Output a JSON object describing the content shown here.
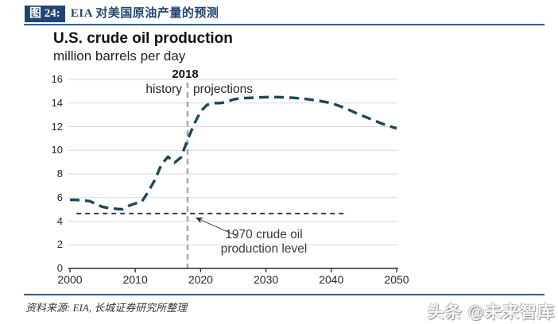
{
  "header": {
    "tag": "图 24:",
    "title": "EIA 对美国原油产量的预测"
  },
  "footer": {
    "source": "资料来源: EIA, 长城证券研究所整理",
    "watermark": "头条 @未来智库"
  },
  "colors": {
    "accent_blue": "#1f4577",
    "rule_blue": "#2e5e9e",
    "series": "#17485e",
    "grid": "#d9d9d9",
    "axis": "#2b2b2b",
    "ref_vertical_gray": "#a9a9a9",
    "ref_horizontal_dark": "#3a3a3a",
    "arrow": "#555555"
  },
  "chart_data": {
    "type": "line",
    "title": "U.S. crude oil production",
    "subtitle": "million barrels per day",
    "xlabel": "",
    "ylabel": "million barrels per day",
    "xlim": [
      2000,
      2050
    ],
    "ylim": [
      0,
      16
    ],
    "x_ticks": [
      2000,
      2010,
      2020,
      2030,
      2040,
      2050
    ],
    "y_ticks": [
      0,
      2,
      4,
      6,
      8,
      10,
      12,
      14,
      16
    ],
    "grid": "horizontal-only",
    "legend_position": "none",
    "series": [
      {
        "name": "U.S. crude oil production",
        "line_style": "dashed",
        "points": [
          [
            2000,
            5.8
          ],
          [
            2001,
            5.8
          ],
          [
            2002,
            5.75
          ],
          [
            2003,
            5.7
          ],
          [
            2004,
            5.45
          ],
          [
            2005,
            5.2
          ],
          [
            2006,
            5.1
          ],
          [
            2007,
            5.05
          ],
          [
            2008,
            5.0
          ],
          [
            2009,
            5.3
          ],
          [
            2010,
            5.5
          ],
          [
            2011,
            5.65
          ],
          [
            2012,
            6.5
          ],
          [
            2013,
            7.5
          ],
          [
            2014,
            8.8
          ],
          [
            2015,
            9.45
          ],
          [
            2016,
            8.95
          ],
          [
            2017,
            9.4
          ],
          [
            2018,
            10.9
          ],
          [
            2019,
            12.2
          ],
          [
            2020,
            13.3
          ],
          [
            2021,
            13.85
          ],
          [
            2022,
            14.0
          ],
          [
            2023,
            14.0
          ],
          [
            2024,
            14.1
          ],
          [
            2025,
            14.3
          ],
          [
            2026,
            14.4
          ],
          [
            2028,
            14.45
          ],
          [
            2030,
            14.5
          ],
          [
            2032,
            14.5
          ],
          [
            2034,
            14.45
          ],
          [
            2036,
            14.35
          ],
          [
            2038,
            14.2
          ],
          [
            2040,
            14.0
          ],
          [
            2042,
            13.6
          ],
          [
            2044,
            13.1
          ],
          [
            2046,
            12.65
          ],
          [
            2048,
            12.2
          ],
          [
            2050,
            11.85
          ]
        ]
      }
    ],
    "reference_lines": {
      "vertical": {
        "x": 2018,
        "label": "2018",
        "left_label": "history",
        "right_label": "projections"
      },
      "horizontal": {
        "y": 4.65,
        "x_start": 2001,
        "x_end": 2042.5,
        "label": "1970 crude oil production level"
      }
    },
    "annotation": {
      "line1": "1970 crude oil",
      "line2": "production level"
    }
  }
}
